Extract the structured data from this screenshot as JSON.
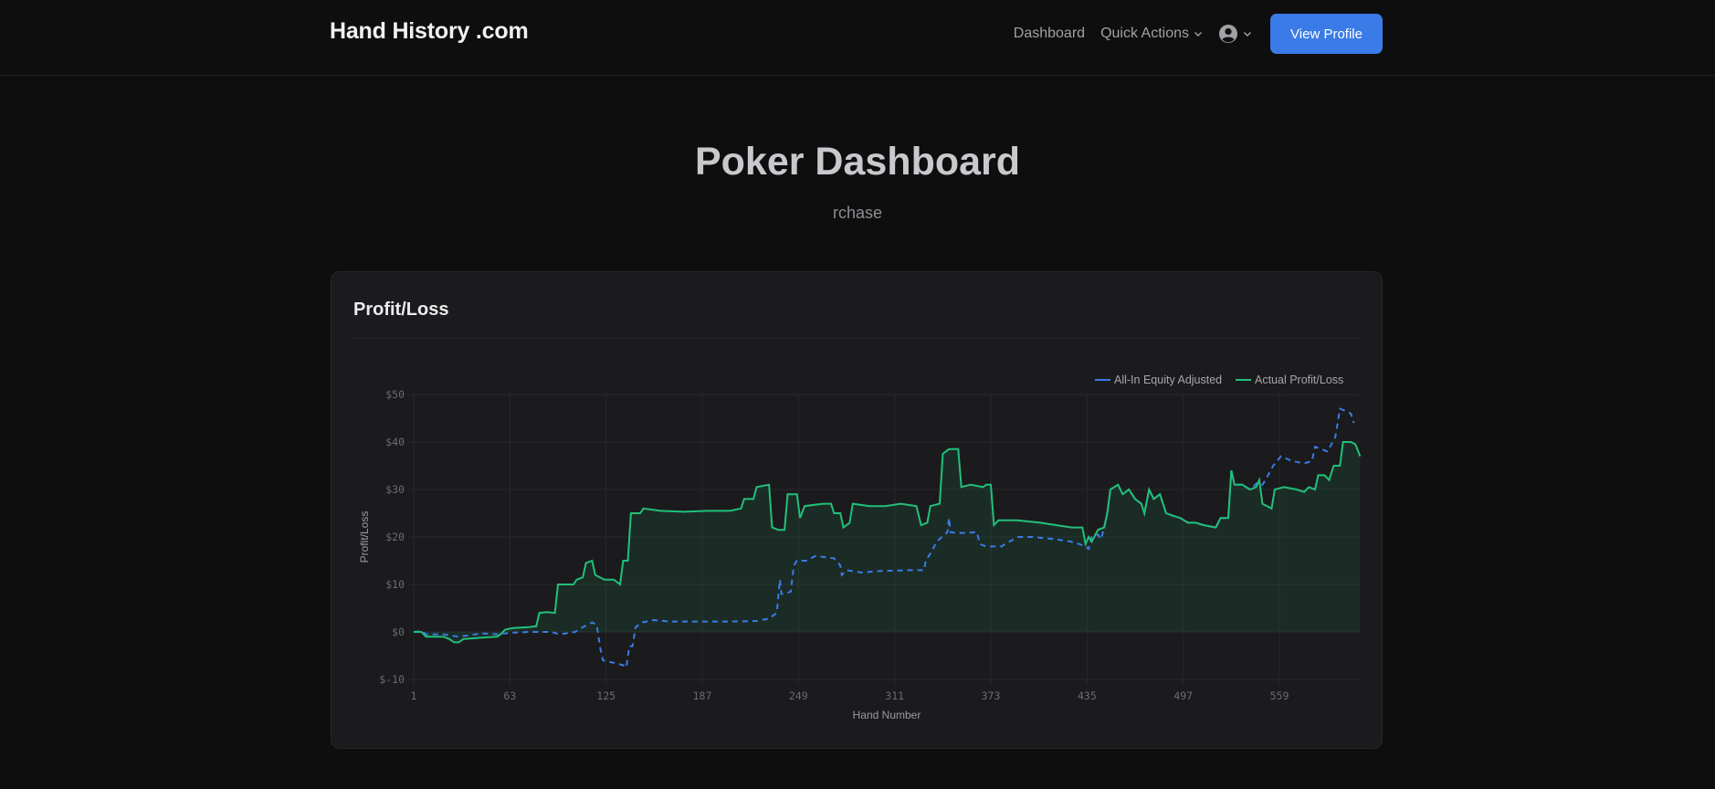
{
  "navbar": {
    "brand": "Hand History .com",
    "links": [
      {
        "label": "Dashboard"
      },
      {
        "label": "Quick Actions",
        "has_dropdown": true
      }
    ],
    "user_menu_icon": "user-circle-icon",
    "view_profile_label": "View Profile"
  },
  "hero": {
    "title": "Poker Dashboard",
    "username": "rchase"
  },
  "card": {
    "title": "Profit/Loss"
  },
  "colors": {
    "equity": "#3b7be8",
    "actual": "#22c07a",
    "actual_fill": "rgba(34,192,122,0.10)",
    "grid": "#28282b",
    "accent_button": "#3b7be8"
  },
  "chart_data": {
    "type": "line",
    "title": "Profit/Loss",
    "xlabel": "Hand Number",
    "ylabel": "Profit/Loss",
    "x_ticks": [
      "1",
      "63",
      "125",
      "187",
      "249",
      "311",
      "373",
      "435",
      "497",
      "559"
    ],
    "y_ticks": [
      "$50",
      "$40",
      "$30",
      "$20",
      "$10",
      "$0",
      "$-10"
    ],
    "ylim": [
      -10,
      50
    ],
    "xlim": [
      1,
      611
    ],
    "grid": true,
    "legend_position": "top-right",
    "legend": [
      "All-In Equity Adjusted",
      "Actual Profit/Loss"
    ],
    "series": [
      {
        "name": "All-In Equity Adjusted",
        "style": "dashed",
        "points": [
          [
            1,
            0
          ],
          [
            6,
            0.2
          ],
          [
            9,
            -0.5
          ],
          [
            20,
            -0.5
          ],
          [
            30,
            -1
          ],
          [
            45,
            -0.3
          ],
          [
            55,
            -0.5
          ],
          [
            63,
            -0.2
          ],
          [
            75,
            0
          ],
          [
            90,
            0
          ],
          [
            95,
            -0.5
          ],
          [
            105,
            0
          ],
          [
            110,
            1
          ],
          [
            116,
            2
          ],
          [
            119,
            1.5
          ],
          [
            121,
            -3
          ],
          [
            123,
            -6
          ],
          [
            130,
            -6.5
          ],
          [
            136,
            -7
          ],
          [
            138,
            -7.5
          ],
          [
            140,
            -3
          ],
          [
            142,
            -3
          ],
          [
            144,
            1
          ],
          [
            148,
            2
          ],
          [
            156,
            2.5
          ],
          [
            166,
            2.2
          ],
          [
            185,
            2.2
          ],
          [
            205,
            2.2
          ],
          [
            222,
            2.3
          ],
          [
            230,
            2.8
          ],
          [
            235,
            4
          ],
          [
            237,
            11
          ],
          [
            238,
            8
          ],
          [
            240,
            8
          ],
          [
            244,
            8.5
          ],
          [
            246,
            14
          ],
          [
            248,
            15
          ],
          [
            254,
            15
          ],
          [
            260,
            16
          ],
          [
            272,
            15.5
          ],
          [
            276,
            14
          ],
          [
            277,
            12
          ],
          [
            280,
            13
          ],
          [
            290,
            12.5
          ],
          [
            300,
            12.8
          ],
          [
            320,
            13
          ],
          [
            330,
            13
          ],
          [
            331,
            15
          ],
          [
            335,
            17
          ],
          [
            338,
            19
          ],
          [
            345,
            21
          ],
          [
            346,
            24
          ],
          [
            347,
            21
          ],
          [
            352,
            20.8
          ],
          [
            364,
            21
          ],
          [
            366,
            18.5
          ],
          [
            370,
            18
          ],
          [
            380,
            18
          ],
          [
            382,
            18.5
          ],
          [
            385,
            19
          ],
          [
            390,
            20
          ],
          [
            400,
            20
          ],
          [
            415,
            19.5
          ],
          [
            425,
            19
          ],
          [
            430,
            18.5
          ],
          [
            434,
            18
          ],
          [
            436,
            17.5
          ],
          [
            438,
            20
          ],
          [
            442,
            20.5
          ],
          [
            444,
            19.5
          ],
          [
            446,
            22
          ],
          [
            448,
            25
          ],
          [
            450,
            30
          ],
          [
            455,
            31
          ],
          [
            458,
            29
          ],
          [
            462,
            30
          ],
          [
            466,
            28
          ],
          [
            470,
            27
          ],
          [
            472,
            25
          ],
          [
            475,
            30
          ],
          [
            478,
            28
          ],
          [
            482,
            29
          ],
          [
            486,
            25
          ],
          [
            490,
            24.5
          ],
          [
            495,
            24
          ],
          [
            500,
            23
          ],
          [
            505,
            23
          ],
          [
            510,
            22.5
          ],
          [
            518,
            22
          ],
          [
            521,
            24
          ],
          [
            526,
            24
          ],
          [
            528,
            34
          ],
          [
            530,
            31
          ],
          [
            535,
            31
          ],
          [
            540,
            30
          ],
          [
            545,
            31.5
          ],
          [
            548,
            31
          ],
          [
            550,
            32
          ],
          [
            555,
            35
          ],
          [
            560,
            37
          ],
          [
            567,
            36
          ],
          [
            575,
            35.5
          ],
          [
            580,
            36
          ],
          [
            582,
            39
          ],
          [
            590,
            38
          ],
          [
            595,
            41
          ],
          [
            598,
            47
          ],
          [
            602,
            46.5
          ],
          [
            605,
            46
          ],
          [
            607,
            44
          ]
        ]
      },
      {
        "name": "Actual Profit/Loss",
        "style": "solid",
        "points": [
          [
            1,
            0
          ],
          [
            6,
            0
          ],
          [
            9,
            -1
          ],
          [
            20,
            -1
          ],
          [
            24,
            -1.5
          ],
          [
            27,
            -2.2
          ],
          [
            30,
            -2.2
          ],
          [
            33,
            -1.5
          ],
          [
            45,
            -1.2
          ],
          [
            55,
            -1
          ],
          [
            57,
            -0.5
          ],
          [
            60,
            0.5
          ],
          [
            65,
            0.8
          ],
          [
            75,
            1
          ],
          [
            80,
            1.2
          ],
          [
            82,
            4
          ],
          [
            87,
            4.2
          ],
          [
            92,
            4
          ],
          [
            94,
            10
          ],
          [
            98,
            10
          ],
          [
            104,
            10
          ],
          [
            106,
            11
          ],
          [
            110,
            11.5
          ],
          [
            112,
            14.5
          ],
          [
            116,
            15
          ],
          [
            118,
            12
          ],
          [
            124,
            11
          ],
          [
            130,
            11
          ],
          [
            134,
            10
          ],
          [
            136,
            15
          ],
          [
            139,
            15
          ],
          [
            141,
            25
          ],
          [
            147,
            25
          ],
          [
            149,
            26
          ],
          [
            160,
            25.5
          ],
          [
            175,
            25.3
          ],
          [
            190,
            25.5
          ],
          [
            205,
            25.5
          ],
          [
            212,
            26
          ],
          [
            214,
            28
          ],
          [
            220,
            28
          ],
          [
            222,
            30.5
          ],
          [
            230,
            31
          ],
          [
            232,
            22
          ],
          [
            236,
            21.5
          ],
          [
            240,
            21.5
          ],
          [
            242,
            29
          ],
          [
            248,
            29
          ],
          [
            250,
            24
          ],
          [
            253,
            26.5
          ],
          [
            265,
            27
          ],
          [
            270,
            27
          ],
          [
            272,
            25
          ],
          [
            276,
            25
          ],
          [
            278,
            22
          ],
          [
            282,
            23
          ],
          [
            284,
            27
          ],
          [
            295,
            26.5
          ],
          [
            305,
            26.5
          ],
          [
            315,
            27
          ],
          [
            325,
            26.5
          ],
          [
            328,
            22.5
          ],
          [
            332,
            23
          ],
          [
            334,
            26.5
          ],
          [
            340,
            27
          ],
          [
            342,
            37.5
          ],
          [
            346,
            38.5
          ],
          [
            352,
            38.5
          ],
          [
            354,
            30.5
          ],
          [
            360,
            31
          ],
          [
            368,
            30.5
          ],
          [
            370,
            31
          ],
          [
            373,
            31
          ],
          [
            375,
            22.5
          ],
          [
            378,
            23.5
          ],
          [
            390,
            23.5
          ],
          [
            405,
            23
          ],
          [
            415,
            22.5
          ],
          [
            425,
            22
          ],
          [
            432,
            22
          ],
          [
            434,
            18.5
          ],
          [
            436,
            20
          ],
          [
            438,
            19
          ],
          [
            442,
            21.5
          ],
          [
            446,
            22
          ],
          [
            448,
            25
          ],
          [
            450,
            30
          ],
          [
            455,
            31
          ],
          [
            458,
            29
          ],
          [
            462,
            30
          ],
          [
            466,
            28
          ],
          [
            470,
            27
          ],
          [
            472,
            25
          ],
          [
            475,
            30
          ],
          [
            478,
            28
          ],
          [
            482,
            29
          ],
          [
            486,
            25
          ],
          [
            490,
            24.5
          ],
          [
            495,
            24
          ],
          [
            500,
            23
          ],
          [
            505,
            23
          ],
          [
            510,
            22.5
          ],
          [
            518,
            22
          ],
          [
            521,
            24
          ],
          [
            526,
            24
          ],
          [
            528,
            34
          ],
          [
            530,
            31
          ],
          [
            535,
            31
          ],
          [
            540,
            30
          ],
          [
            544,
            30.5
          ],
          [
            546,
            32
          ],
          [
            548,
            27
          ],
          [
            554,
            26
          ],
          [
            556,
            30
          ],
          [
            562,
            30.5
          ],
          [
            570,
            30
          ],
          [
            575,
            29.5
          ],
          [
            578,
            30.5
          ],
          [
            582,
            30
          ],
          [
            584,
            33
          ],
          [
            588,
            33
          ],
          [
            591,
            32
          ],
          [
            594,
            35
          ],
          [
            598,
            35
          ],
          [
            600,
            40
          ],
          [
            605,
            40
          ],
          [
            608,
            39.5
          ],
          [
            611,
            37
          ]
        ]
      }
    ]
  }
}
